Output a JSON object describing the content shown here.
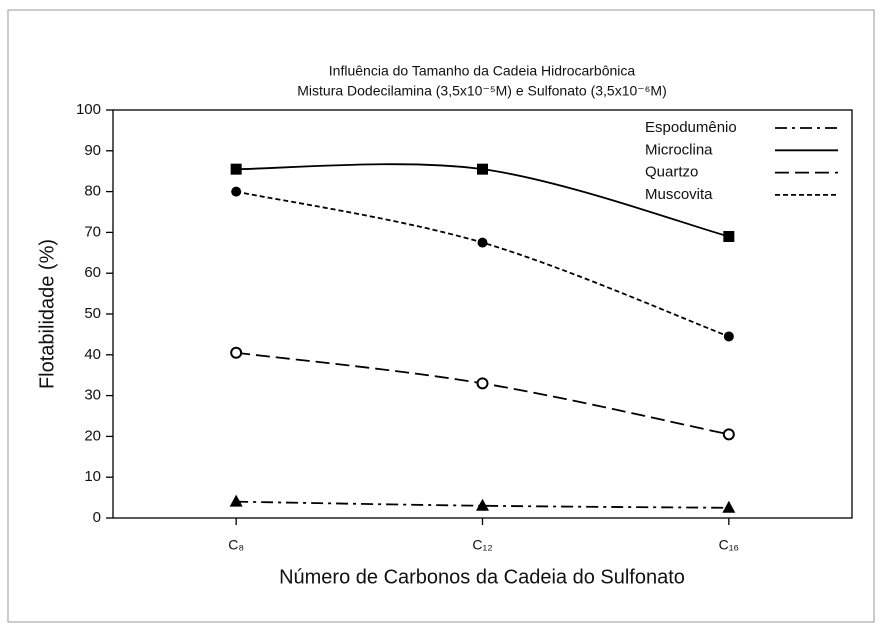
{
  "chart_data": {
    "type": "line",
    "title": [
      "Influência do Tamanho da Cadeia Hidrocarbônica",
      "Mistura Dodecilamina (3,5x10⁻⁵M) e Sulfonato (3,5x10⁻⁶M)"
    ],
    "xlabel": "Número de Carbonos da Cadeia do Sulfonato",
    "ylabel": "Flotabilidade (%)",
    "categories": [
      "C₈",
      "C₁₂",
      "C₁₆"
    ],
    "series": [
      {
        "name": "Espodumênio",
        "color": "#000000",
        "marker": "triangle",
        "dash": "dashdot",
        "values": [
          4,
          3,
          2.5
        ]
      },
      {
        "name": "Microclina",
        "color": "#000000",
        "marker": "square",
        "dash": "solid",
        "values": [
          85.5,
          85.5,
          69
        ]
      },
      {
        "name": "Quartzo",
        "color": "#000000",
        "marker": "open-circle",
        "dash": "long",
        "values": [
          40.5,
          33,
          20.5
        ]
      },
      {
        "name": "Muscovita",
        "color": "#000000",
        "marker": "circle",
        "dash": "short",
        "values": [
          80,
          67.5,
          44.5
        ]
      }
    ],
    "ylim": [
      0,
      100
    ],
    "yticks": [
      0,
      10,
      20,
      30,
      40,
      50,
      60,
      70,
      80,
      90,
      100
    ],
    "legend": "upper right",
    "grid": false
  }
}
